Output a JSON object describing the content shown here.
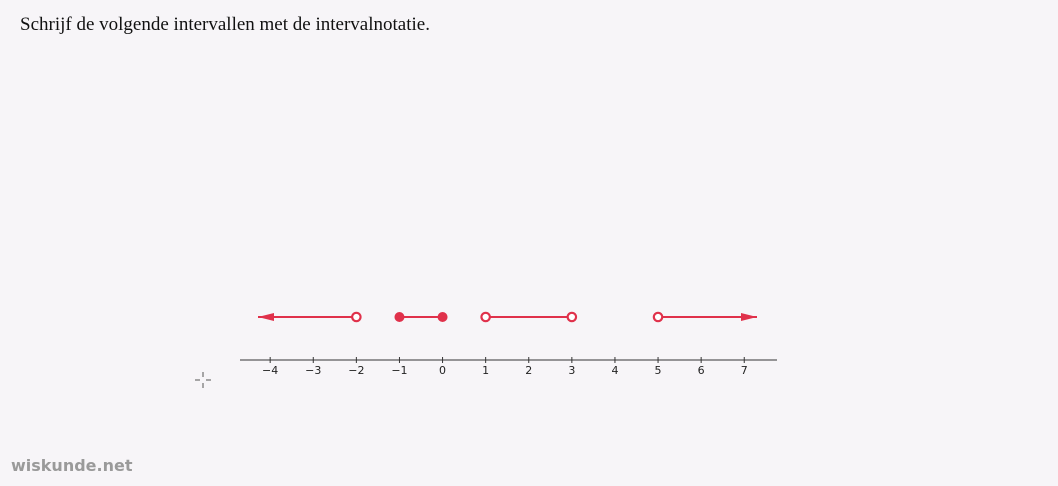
{
  "instruction": "Schrijf de volgende intervallen met de intervalnotatie.",
  "watermark": "wiskunde.net",
  "number_line": {
    "xlim": [
      -4.7,
      7.76
    ],
    "ticks": [
      {
        "value": -4,
        "label": "−4"
      },
      {
        "value": -3,
        "label": "−3"
      },
      {
        "value": -2,
        "label": "−2"
      },
      {
        "value": -1,
        "label": "−1"
      },
      0,
      1,
      2,
      3,
      4,
      5,
      6,
      7
    ],
    "color": "#e0314b",
    "intervals": [
      {
        "start": null,
        "end": -2,
        "start_closed": false,
        "end_closed": false
      },
      {
        "start": -1,
        "end": 0,
        "start_closed": true,
        "end_closed": true
      },
      {
        "start": 1,
        "end": 3,
        "start_closed": false,
        "end_closed": false
      },
      {
        "start": 5,
        "end": null,
        "start_closed": false,
        "end_closed": false
      }
    ]
  }
}
